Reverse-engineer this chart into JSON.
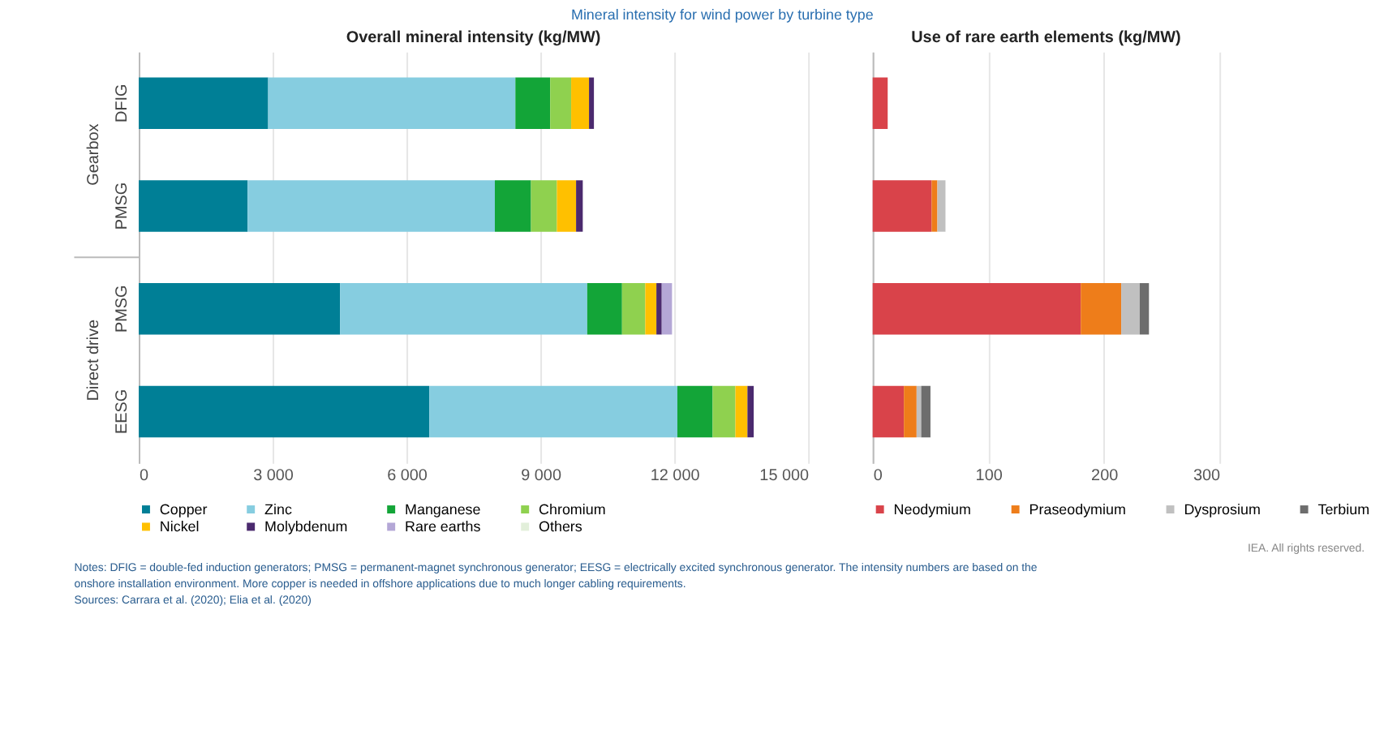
{
  "chart_data": [
    {
      "type": "bar",
      "orientation": "horizontal",
      "stacked": true,
      "title": "Overall mineral intensity (kg/MW)",
      "categories": [
        "DFIG",
        "PMSG",
        "PMSG",
        "EESG"
      ],
      "series": [
        {
          "name": "Copper",
          "color": "#007f96",
          "values": [
            2900,
            2440,
            4510,
            6510
          ]
        },
        {
          "name": "Zinc",
          "color": "#86cde0",
          "values": [
            5540,
            5540,
            5540,
            5560
          ]
        },
        {
          "name": "Manganese",
          "color": "#13a538",
          "values": [
            780,
            810,
            780,
            790
          ]
        },
        {
          "name": "Chromium",
          "color": "#8fd14f",
          "values": [
            470,
            580,
            520,
            510
          ]
        },
        {
          "name": "Nickel",
          "color": "#ffc000",
          "values": [
            400,
            430,
            250,
            270
          ]
        },
        {
          "name": "Molybdenum",
          "color": "#4b2a6e",
          "values": [
            110,
            150,
            120,
            140
          ]
        },
        {
          "name": "Rare earths",
          "color": "#b4a7d6",
          "values": [
            null,
            null,
            230,
            null
          ]
        },
        {
          "name": "Others",
          "color": "#e2efda",
          "values": [
            null,
            null,
            null,
            null
          ]
        }
      ],
      "xlim": [
        0,
        15000
      ],
      "xticks": [
        0,
        {
          "value": 3000,
          "label": "3 000"
        },
        {
          "value": 6000,
          "label": "6 000"
        },
        {
          "value": 9000,
          "label": "9 000"
        },
        {
          "value": 12000,
          "label": "12 000"
        },
        {
          "value": 15000,
          "label": "15 000"
        }
      ],
      "grid": "x",
      "legend": "bottom",
      "annotations": [
        "Mineral intensity for wind power by turbine type",
        "Gearbox",
        "Direct drive",
        "IEA. All rights reserved.",
        "Notes: DFIG = double-fed induction generators; PMSG = permanent-magnet synchronous generator; EESG = electrically excited synchronous generator. The intensity numbers are based on the onshore installation environment. More copper is needed in offshore applications due to much longer cabling requirements.",
        "Sources: Carrara et al. (2020); Elia et al. (2020)"
      ]
    },
    {
      "type": "bar",
      "orientation": "horizontal",
      "stacked": true,
      "title": "Use of rare earth elements (kg/MW)",
      "series": [
        {
          "name": "Neodymium",
          "color": "#d9434a",
          "values": [
            13,
            51,
            180,
            27
          ]
        },
        {
          "name": "Praseodymium",
          "color": "#ee7d1a",
          "values": [
            null,
            5,
            35,
            11
          ]
        },
        {
          "name": "Dysprosium",
          "color": "#c0c0c0",
          "values": [
            null,
            7,
            16,
            4
          ]
        },
        {
          "name": "Terbium",
          "color": "#6d6d6d",
          "values": [
            null,
            null,
            8,
            8
          ]
        }
      ],
      "xlim": [
        0,
        300
      ],
      "xticks": [
        0,
        100,
        200,
        300
      ],
      "grid": "x",
      "legend": "bottom",
      "tick_labels": "x"
    }
  ]
}
